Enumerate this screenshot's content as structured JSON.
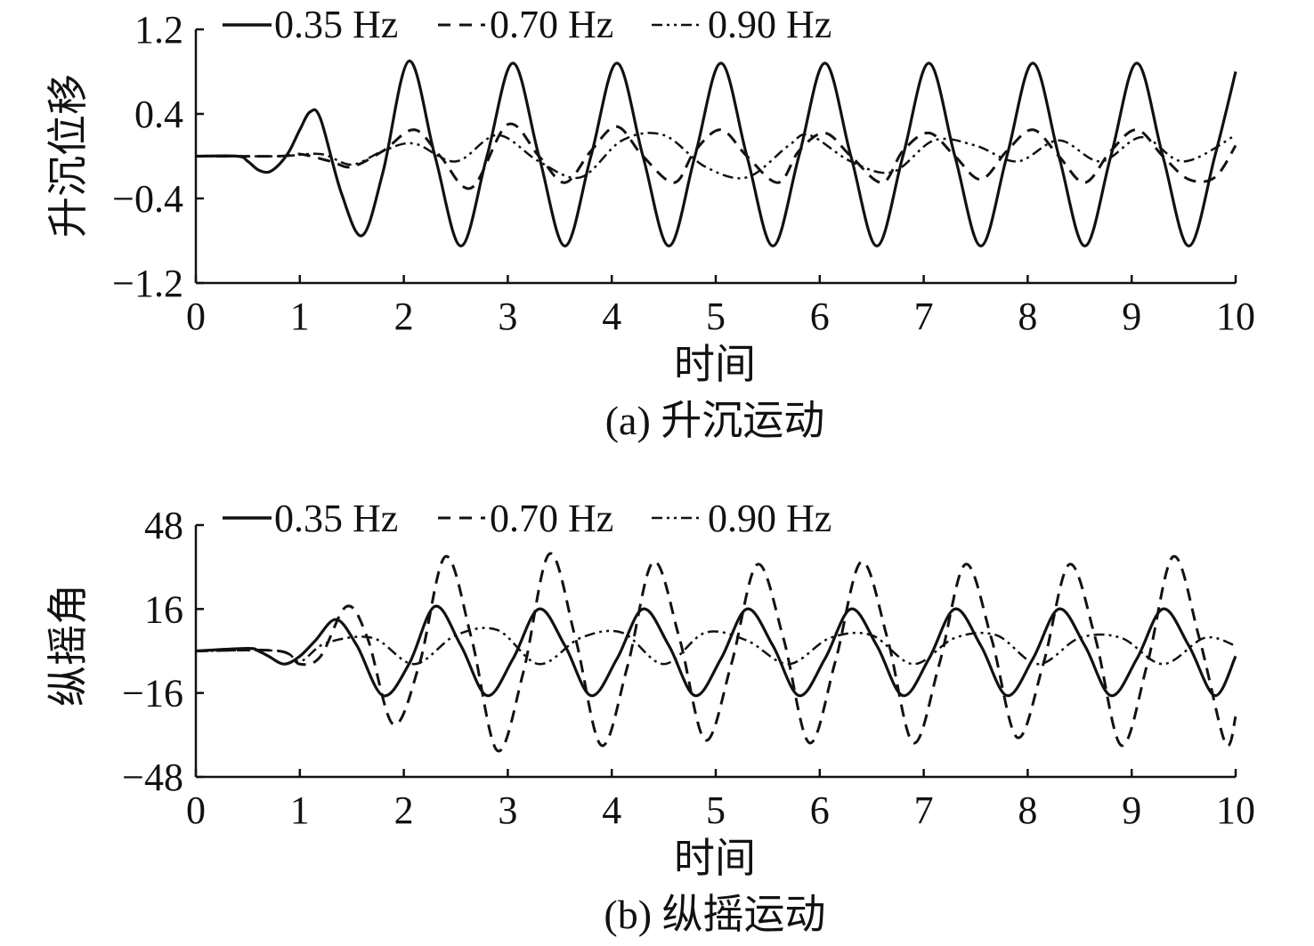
{
  "chart_data": [
    {
      "type": "line",
      "panel": "a",
      "caption": "(a) 升沉运动",
      "xlabel": "时间",
      "ylabel": "升沉位移",
      "xlim": [
        0,
        10
      ],
      "ylim": [
        -1.2,
        1.2
      ],
      "xticks": [
        "0",
        "1",
        "2",
        "3",
        "4",
        "5",
        "6",
        "7",
        "8",
        "9",
        "10"
      ],
      "yticks": [
        "1.2",
        "0.4",
        "−0.4",
        "−1.2"
      ],
      "legend_position": "top",
      "series": [
        {
          "name": "0.35 Hz",
          "style": "solid",
          "x": [
            0,
            0.4,
            0.5,
            0.6,
            0.7,
            0.8,
            0.9,
            1.0,
            1.1,
            1.2,
            1.4,
            1.6,
            1.8,
            2.05,
            2.3,
            2.55,
            2.8,
            3.05,
            3.3,
            3.55,
            3.8,
            4.05,
            4.3,
            4.55,
            4.8,
            5.05,
            5.3,
            5.55,
            5.8,
            6.05,
            6.3,
            6.55,
            6.8,
            7.05,
            7.3,
            7.55,
            7.8,
            8.05,
            8.3,
            8.55,
            8.8,
            9.05,
            9.3,
            9.55,
            9.8,
            10.0
          ],
          "y": [
            0,
            0,
            -0.05,
            -0.13,
            -0.15,
            -0.08,
            0.05,
            0.25,
            0.42,
            0.35,
            -0.35,
            -0.75,
            -0.15,
            0.9,
            0.0,
            -0.85,
            0.0,
            0.88,
            0.0,
            -0.85,
            0.0,
            0.88,
            0.0,
            -0.85,
            0.0,
            0.88,
            0.0,
            -0.85,
            0.0,
            0.88,
            0.0,
            -0.85,
            0.0,
            0.88,
            0.0,
            -0.85,
            0.0,
            0.88,
            0.0,
            -0.85,
            0.0,
            0.88,
            0.0,
            -0.85,
            0.0,
            0.8
          ]
        },
        {
          "name": "0.70 Hz",
          "style": "dashed",
          "x": [
            0,
            0.8,
            1.0,
            1.3,
            1.5,
            1.8,
            2.1,
            2.35,
            2.65,
            3.0,
            3.3,
            3.55,
            3.8,
            4.05,
            4.3,
            4.6,
            4.8,
            5.05,
            5.3,
            5.6,
            5.8,
            6.05,
            6.3,
            6.6,
            6.8,
            7.05,
            7.3,
            7.55,
            7.8,
            8.05,
            8.3,
            8.55,
            8.8,
            9.05,
            9.3,
            9.55,
            9.8,
            10.0
          ],
          "y": [
            0,
            0,
            0.02,
            -0.05,
            -0.1,
            0.05,
            0.25,
            0.0,
            -0.3,
            0.3,
            0.0,
            -0.25,
            0.05,
            0.28,
            0.0,
            -0.25,
            0.05,
            0.25,
            0.0,
            -0.25,
            0.05,
            0.22,
            0.0,
            -0.25,
            0.05,
            0.22,
            0.0,
            -0.22,
            0.05,
            0.25,
            0.0,
            -0.25,
            0.05,
            0.25,
            0.0,
            -0.22,
            -0.2,
            0.1
          ]
        },
        {
          "name": "0.90 Hz",
          "style": "dash-dot-dot",
          "x": [
            0,
            0.8,
            1.2,
            1.5,
            1.8,
            2.1,
            2.5,
            2.9,
            3.3,
            3.7,
            4.1,
            4.5,
            4.9,
            5.3,
            5.7,
            5.9,
            6.3,
            6.7,
            7.1,
            7.5,
            7.9,
            8.3,
            8.7,
            9.1,
            9.5,
            10.0
          ],
          "y": [
            0,
            0,
            0.02,
            -0.08,
            0.05,
            0.12,
            -0.05,
            0.2,
            -0.05,
            -0.2,
            0.15,
            0.2,
            -0.1,
            -0.2,
            0.1,
            0.2,
            -0.05,
            -0.15,
            0.15,
            0.1,
            -0.05,
            0.15,
            -0.05,
            0.18,
            -0.05,
            0.2
          ]
        }
      ]
    },
    {
      "type": "line",
      "panel": "b",
      "caption": "(b) 纵摇运动",
      "xlabel": "时间",
      "ylabel": "纵摇角",
      "xlim": [
        0,
        10
      ],
      "ylim": [
        -48,
        48
      ],
      "xticks": [
        "0",
        "1",
        "2",
        "3",
        "4",
        "5",
        "6",
        "7",
        "8",
        "9",
        "10"
      ],
      "yticks": [
        "48",
        "16",
        "−16",
        "−48"
      ],
      "legend_position": "top",
      "series": [
        {
          "name": "0.35 Hz",
          "style": "solid",
          "x": [
            0,
            0.5,
            0.6,
            0.7,
            0.85,
            1.0,
            1.15,
            1.35,
            1.55,
            1.8,
            2.05,
            2.3,
            2.55,
            2.8,
            3.05,
            3.3,
            3.55,
            3.8,
            4.05,
            4.3,
            4.55,
            4.8,
            5.05,
            5.3,
            5.55,
            5.8,
            6.05,
            6.3,
            6.55,
            6.8,
            7.05,
            7.3,
            7.55,
            7.8,
            8.05,
            8.3,
            8.55,
            8.8,
            9.05,
            9.3,
            9.55,
            9.8,
            10.0
          ],
          "y": [
            0,
            1,
            0,
            -2,
            -5,
            -2,
            4,
            12,
            2,
            -17,
            -5,
            17,
            2,
            -17,
            -3,
            16,
            2,
            -17,
            -3,
            16,
            2,
            -17,
            -3,
            16,
            2,
            -17,
            -3,
            16,
            2,
            -17,
            -3,
            16,
            2,
            -17,
            -3,
            16,
            2,
            -17,
            -3,
            16,
            2,
            -17,
            -2
          ]
        },
        {
          "name": "0.70 Hz",
          "style": "dashed",
          "x": [
            0,
            0.8,
            1.0,
            1.2,
            1.45,
            1.65,
            1.9,
            2.15,
            2.4,
            2.65,
            2.9,
            3.15,
            3.4,
            3.65,
            3.9,
            4.15,
            4.4,
            4.65,
            4.9,
            5.15,
            5.4,
            5.65,
            5.9,
            6.15,
            6.4,
            6.65,
            6.9,
            7.15,
            7.4,
            7.65,
            7.9,
            8.15,
            8.4,
            8.65,
            8.9,
            9.15,
            9.4,
            9.65,
            9.9,
            10.0
          ],
          "y": [
            0,
            0,
            -5,
            -2,
            17,
            5,
            -28,
            -5,
            36,
            5,
            -38,
            -8,
            37,
            5,
            -36,
            -6,
            34,
            5,
            -34,
            -5,
            33,
            5,
            -35,
            -4,
            34,
            5,
            -35,
            -5,
            33,
            5,
            -33,
            -5,
            33,
            5,
            -36,
            -5,
            36,
            5,
            -35,
            -25
          ]
        },
        {
          "name": "0.90 Hz",
          "style": "dash-dot-dot",
          "x": [
            0,
            0.8,
            1.0,
            1.25,
            1.7,
            2.1,
            2.5,
            2.9,
            3.3,
            3.7,
            4.1,
            4.5,
            4.9,
            5.3,
            5.7,
            6.1,
            6.5,
            6.9,
            7.3,
            7.7,
            8.1,
            8.5,
            8.9,
            9.3,
            9.7,
            10.0
          ],
          "y": [
            0,
            0,
            -4,
            3,
            5,
            -5,
            6,
            8,
            -5,
            5,
            7,
            -5,
            7,
            4,
            -5,
            5,
            6,
            -5,
            5,
            6,
            -5,
            5,
            5,
            -5,
            5,
            2
          ]
        }
      ]
    }
  ]
}
